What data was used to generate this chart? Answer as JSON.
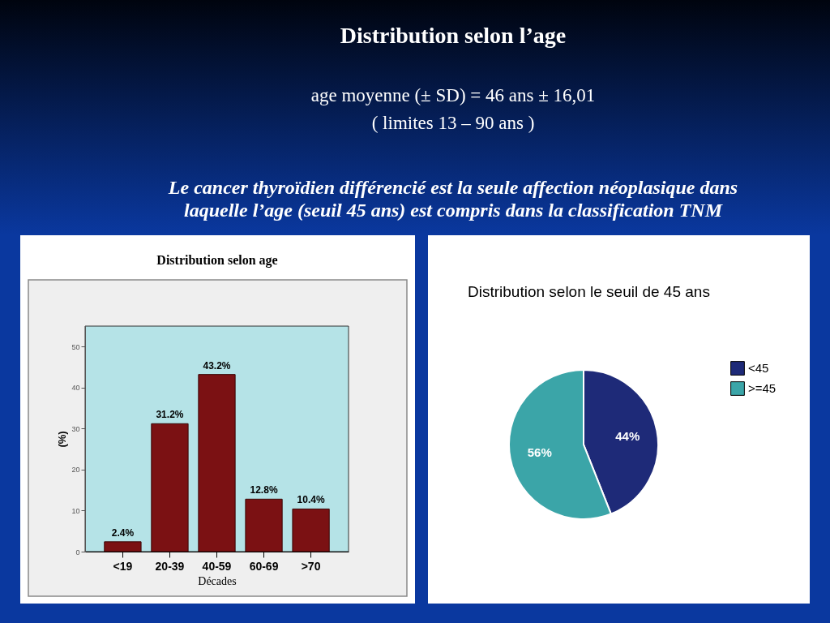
{
  "chart_data": [
    {
      "type": "other",
      "title": "Distribution selon l’age",
      "subtitle": "age moyenne (± SD) = 46 ans ± 16,01",
      "annotations": [
        "( limites 13 – 90 ans )",
        "Le cancer thyroïdien différencié est la seule affection néoplasique dans laquelle l’age (seuil 45 ans) est compris dans la classification TNM"
      ]
    },
    {
      "type": "bar",
      "title": "Distribution selon age",
      "xlabel": "Décades",
      "ylabel": "(%)",
      "categories": [
        "<19",
        "20-39",
        "40-59",
        "60-69",
        ">70"
      ],
      "values": [
        2.4,
        31.2,
        43.2,
        12.8,
        10.4
      ],
      "value_labels": [
        "2.4%",
        "31.2%",
        "43.2%",
        "12.8%",
        "10.4%"
      ],
      "color": "#7b1113",
      "ylim": [
        0,
        55
      ],
      "yticks": [
        0,
        10,
        20,
        30,
        40,
        50
      ]
    },
    {
      "type": "pie",
      "title": "Distribution selon le seuil de 45 ans",
      "categories": [
        "<45",
        ">=45"
      ],
      "values": [
        44,
        56
      ],
      "value_labels": [
        "44%",
        "56%"
      ],
      "colors": [
        "#1e2a78",
        "#3ba5a8"
      ],
      "legend": "top right"
    }
  ]
}
